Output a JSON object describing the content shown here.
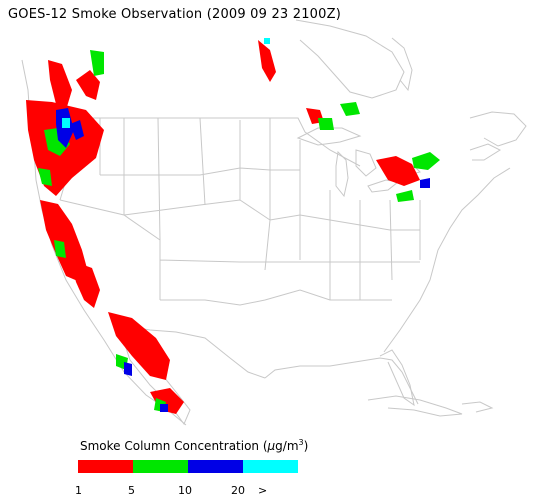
{
  "title": "GOES-12 Smoke Observation (2009 09 23  2100Z)",
  "legend": {
    "title_prefix": "Smoke Column Concentration (",
    "unit_mu": "μ",
    "unit_rest": "g/m",
    "unit_exp": "3",
    "title_suffix": ")",
    "bins": [
      {
        "range": "1-5",
        "color": "#ff0000"
      },
      {
        "range": "5-10",
        "color": "#00e600"
      },
      {
        "range": "10-20",
        "color": "#0000e6"
      },
      {
        "range": ">20",
        "color": "#00ffff"
      }
    ],
    "tick_labels": [
      "1",
      "5",
      "10",
      "20",
      ">"
    ]
  },
  "colors": {
    "outline": "#c8c8c8",
    "low": "#ff0000",
    "moderate": "#00e600",
    "high": "#0000e6",
    "very_high": "#00ffff"
  },
  "smoke_regions": [
    {
      "area": "British Columbia coast",
      "level": "low"
    },
    {
      "area": "Pacific Northwest",
      "level": "high"
    },
    {
      "area": "Northern California",
      "level": "low"
    },
    {
      "area": "Southern California",
      "level": "low"
    },
    {
      "area": "Baja California",
      "level": "moderate"
    },
    {
      "area": "Great Lakes",
      "level": "low"
    },
    {
      "area": "Ontario / Quebec",
      "level": "moderate"
    }
  ]
}
